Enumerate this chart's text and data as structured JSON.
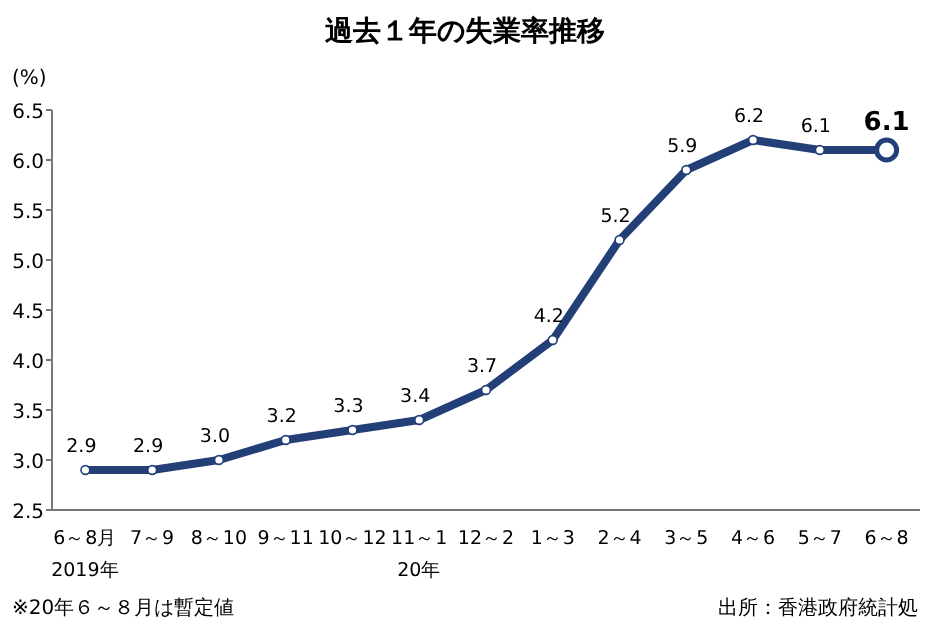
{
  "chart_data": {
    "type": "line",
    "title": "過去１年の失業率推移",
    "ylabel": "(%)",
    "categories": [
      "6～8月\n2019年",
      "7～9",
      "8～10",
      "9～11",
      "10～12",
      "11～1\n20年",
      "12～2",
      "1～3",
      "2～4",
      "3～5",
      "4～6",
      "5～7",
      "6～8"
    ],
    "series": [
      {
        "color": "#233f78",
        "values": [
          2.9,
          2.9,
          3.0,
          3.2,
          3.3,
          3.4,
          3.7,
          4.2,
          5.2,
          5.9,
          6.2,
          6.1,
          6.1
        ],
        "value_labels": [
          "2.9",
          "2.9",
          "3.0",
          "3.2",
          "3.3",
          "3.4",
          "3.7",
          "4.2",
          "5.2",
          "5.9",
          "6.2",
          "6.1",
          "6.1"
        ]
      }
    ],
    "ylim": [
      2.5,
      6.5
    ],
    "yticks": [
      "2.5",
      "3.0",
      "3.5",
      "4.0",
      "4.5",
      "5.0",
      "5.5",
      "6.0",
      "6.5"
    ],
    "marker": "circle",
    "grid": false,
    "annotations": [
      "※20年６～８月は暫定値",
      "出所：香港政府統計処"
    ]
  }
}
